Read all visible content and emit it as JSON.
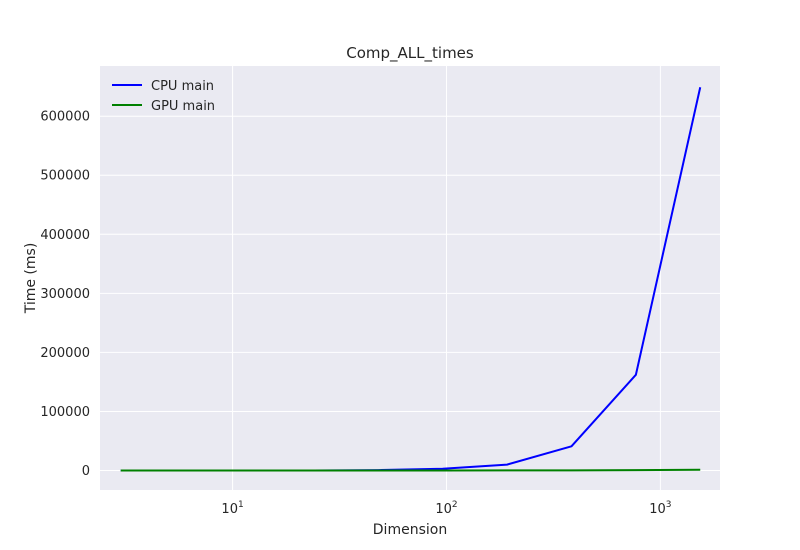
{
  "chart_data": {
    "type": "line",
    "title": "Comp_ALL_times",
    "xlabel": "Dimension",
    "ylabel": "Time (ms)",
    "xscale": "log",
    "xlim": [
      2.4,
      1900
    ],
    "ylim": [
      -33000,
      685000
    ],
    "grid": true,
    "legend_position": "top-left",
    "x_ticks": [
      10,
      100,
      1000
    ],
    "x_tick_labels": [
      {
        "base": "10",
        "exp": "1"
      },
      {
        "base": "10",
        "exp": "2"
      },
      {
        "base": "10",
        "exp": "3"
      }
    ],
    "y_ticks": [
      0,
      100000,
      200000,
      300000,
      400000,
      500000,
      600000
    ],
    "y_tick_labels": [
      "0",
      "100000",
      "200000",
      "300000",
      "400000",
      "500000",
      "600000"
    ],
    "x": [
      3,
      6,
      12,
      24,
      48,
      96,
      192,
      384,
      768,
      1536
    ],
    "series": [
      {
        "name": "CPU main",
        "color": "#0000ff",
        "values": [
          0,
          2,
          20,
          120,
          700,
          3000,
          10000,
          41000,
          162000,
          649000
        ]
      },
      {
        "name": "GPU main",
        "color": "#008000",
        "values": [
          0,
          1,
          5,
          10,
          30,
          60,
          150,
          300,
          600,
          1200
        ]
      }
    ]
  }
}
